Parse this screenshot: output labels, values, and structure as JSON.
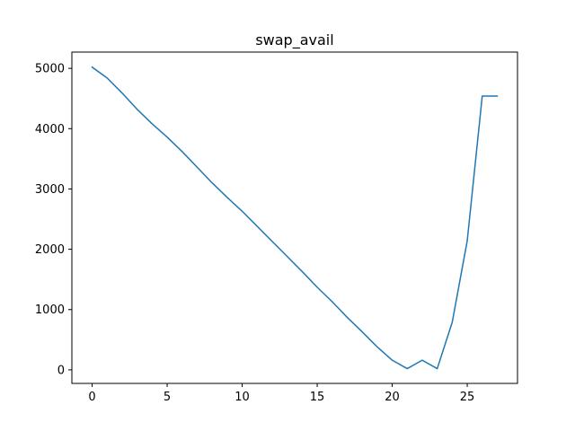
{
  "chart_data": {
    "type": "line",
    "title": "swap_avail",
    "xlabel": "",
    "ylabel": "",
    "xlim": [
      -1.35,
      28.35
    ],
    "ylim": [
      -225,
      5270
    ],
    "xticks": [
      0,
      5,
      10,
      15,
      20,
      25
    ],
    "yticks": [
      0,
      1000,
      2000,
      3000,
      4000,
      5000
    ],
    "xtick_labels": [
      "0",
      "5",
      "10",
      "15",
      "20",
      "25"
    ],
    "ytick_labels": [
      "0",
      "1000",
      "2000",
      "3000",
      "4000",
      "5000"
    ],
    "grid": false,
    "series": [
      {
        "color": "#1f77b4",
        "x": [
          0,
          1,
          2,
          3,
          4,
          5,
          6,
          7,
          8,
          9,
          10,
          11,
          12,
          13,
          14,
          15,
          16,
          17,
          18,
          19,
          20,
          21,
          22,
          23,
          24,
          25,
          26,
          27
        ],
        "y": [
          5020,
          4840,
          4590,
          4320,
          4080,
          3860,
          3620,
          3360,
          3100,
          2860,
          2630,
          2380,
          2130,
          1880,
          1630,
          1370,
          1130,
          870,
          630,
          380,
          160,
          20,
          160,
          20,
          790,
          2140,
          4540,
          4540
        ]
      }
    ]
  }
}
